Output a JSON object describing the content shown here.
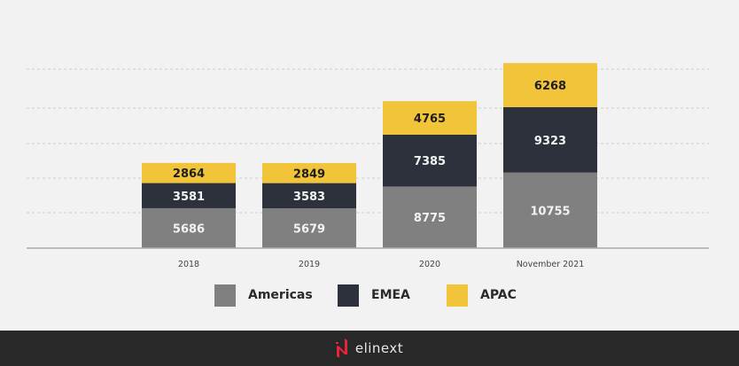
{
  "chart_data": {
    "type": "bar",
    "stacked": true,
    "title": "",
    "xlabel": "",
    "ylabel": "",
    "categories": [
      "2018",
      "2019",
      "2020",
      "November 2021"
    ],
    "series": [
      {
        "name": "Americas",
        "color": "#808080",
        "label_color": "#f2f2f2",
        "values": [
          5686,
          5679,
          8775,
          10755
        ]
      },
      {
        "name": "EMEA",
        "color": "#2c313c",
        "label_color": "#f2f2f2",
        "values": [
          3581,
          3583,
          7385,
          9323
        ]
      },
      {
        "name": "APAC",
        "color": "#f2c43a",
        "label_color": "#1e1e1e",
        "values": [
          2864,
          2849,
          4765,
          6268
        ]
      }
    ],
    "ylim": [
      0,
      26500
    ],
    "grid": true,
    "grid_style": "dashed",
    "legend_position": "bottom"
  },
  "legend": [
    {
      "label": "Americas",
      "color": "#808080"
    },
    {
      "label": "EMEA",
      "color": "#2c313c"
    },
    {
      "label": "APAC",
      "color": "#f2c43a"
    }
  ],
  "footer": {
    "brand": "elinext",
    "brand_color": "#e8233a"
  }
}
